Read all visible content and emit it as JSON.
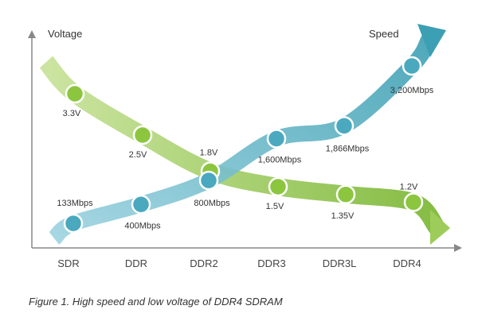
{
  "chart_data": {
    "type": "line",
    "categories": [
      "SDR",
      "DDR",
      "DDR2",
      "DDR3",
      "DDR3L",
      "DDR4"
    ],
    "axis_labels": {
      "left": "Voltage",
      "right": "Speed"
    },
    "series": [
      {
        "name": "Voltage",
        "values": [
          3.3,
          2.5,
          1.8,
          1.5,
          1.35,
          1.2
        ],
        "labels": [
          "3.3V",
          "2.5V",
          "1.8V",
          "1.5V",
          "1.35V",
          "1.2V"
        ],
        "colors": {
          "band": "#9dcc5a",
          "band_light": "#c9e39c",
          "dot": "#8cc63f"
        }
      },
      {
        "name": "Speed",
        "values": [
          133,
          400,
          800,
          1600,
          1866,
          3200
        ],
        "unit": "Mbps",
        "labels": [
          "133Mbps",
          "400Mbps",
          "800Mbps",
          "1,600Mbps",
          "1,866Mbps",
          "3,200Mbps"
        ],
        "colors": {
          "band": "#3c9fb3",
          "band_light": "#9dd3e0",
          "dot": "#4aa8bf"
        }
      }
    ],
    "grid": false,
    "legend": "none"
  },
  "caption": "Figure 1. High speed and low voltage of DDR4 SDRAM"
}
